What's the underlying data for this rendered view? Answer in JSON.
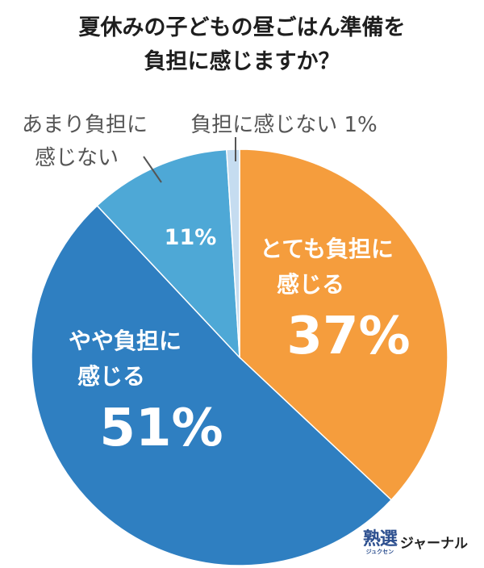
{
  "title_lines": [
    "夏休みの子どもの昼ごはん準備を",
    "負担に感じますか？"
  ],
  "chart_data": {
    "type": "pie",
    "slices": [
      {
        "name_lines": [
          "とても負担に",
          "感じる"
        ],
        "value": 37,
        "value_label": "37%",
        "color": "#f59d3d"
      },
      {
        "name_lines": [
          "やや負担に",
          "感じる"
        ],
        "value": 51,
        "value_label": "51%",
        "color": "#2f7fc1"
      },
      {
        "name_lines": [
          "あまり負担に",
          "感じない"
        ],
        "value": 11,
        "value_label": "11%",
        "color": "#4ea8d6"
      },
      {
        "name_lines": [
          "負担に感じない 1%"
        ],
        "value": 1,
        "value_label": "",
        "color": "#c5dcf0"
      }
    ]
  },
  "logo": {
    "main": "熟選",
    "sub": "ジュクセン",
    "text": "ジャーナル"
  }
}
